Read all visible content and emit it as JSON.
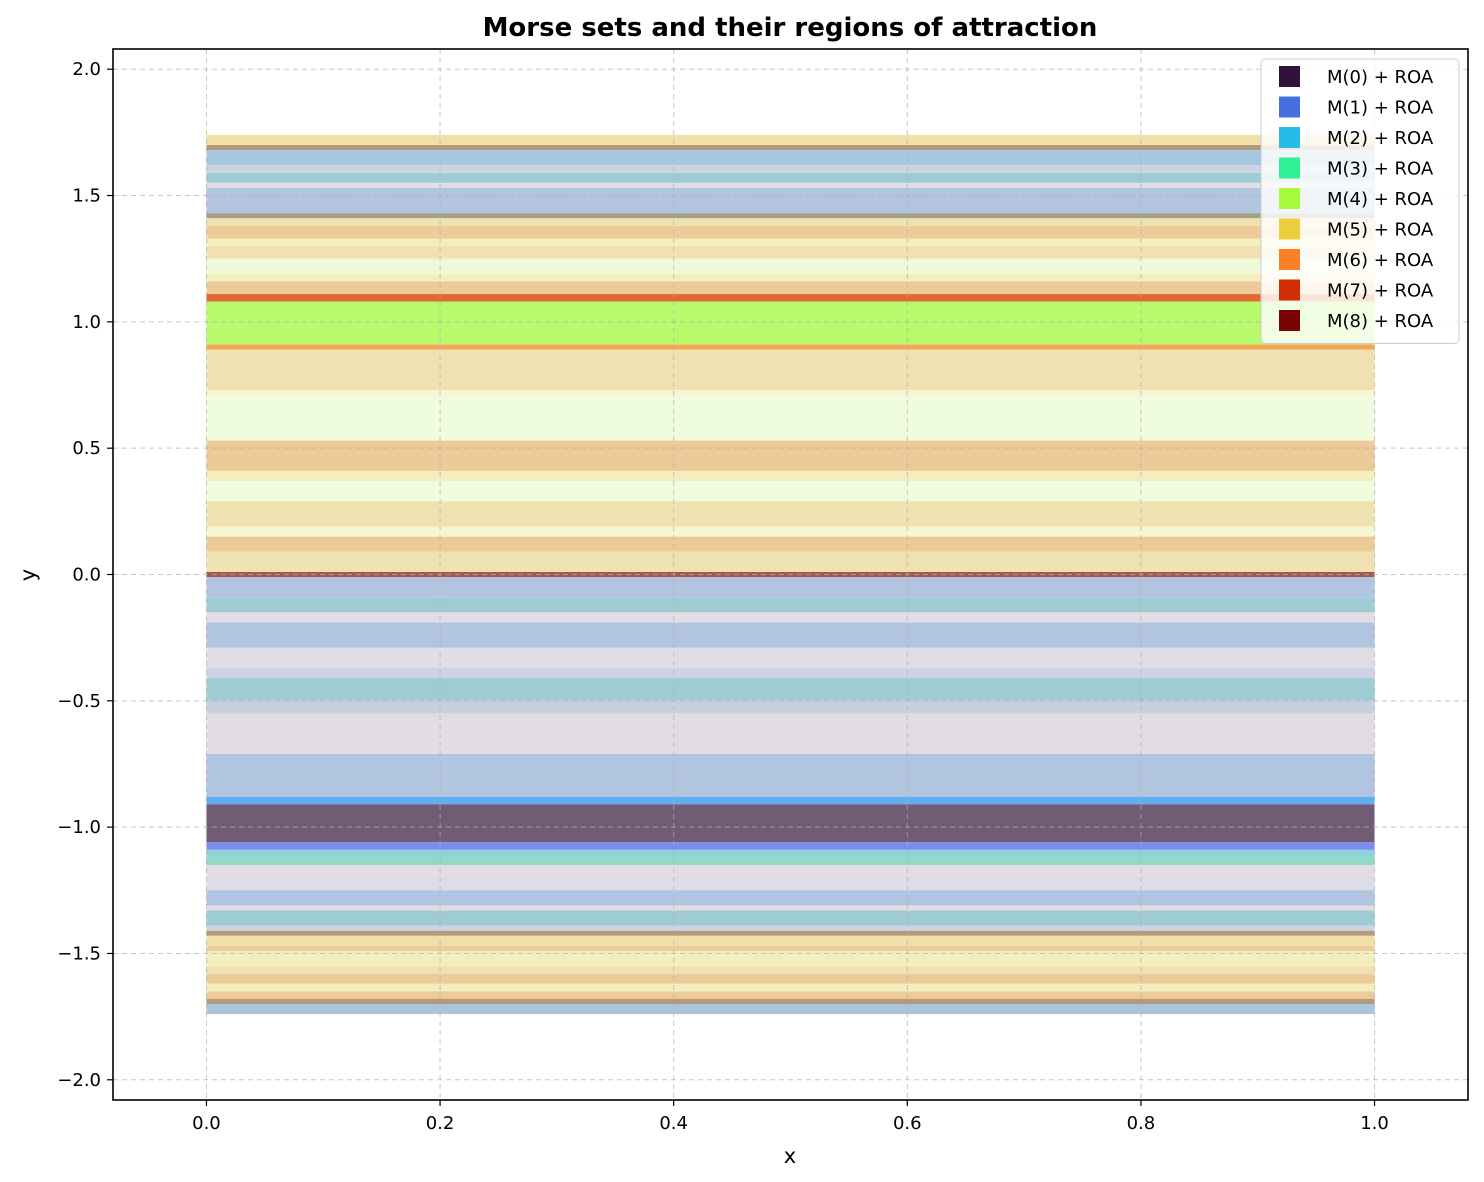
{
  "chart_data": {
    "type": "heatmap",
    "title": "Morse sets and their regions of attraction",
    "xlabel": "x",
    "ylabel": "y",
    "xlim": [
      -0.08,
      1.08
    ],
    "ylim": [
      -2.08,
      2.08
    ],
    "xticks": [
      0.0,
      0.2,
      0.4,
      0.6,
      0.8,
      1.0
    ],
    "xtick_labels": [
      "0.0",
      "0.2",
      "0.4",
      "0.6",
      "0.8",
      "1.0"
    ],
    "yticks": [
      2.0,
      1.5,
      1.0,
      0.5,
      0.0,
      -0.5,
      -1.0,
      -1.5,
      -2.0
    ],
    "ytick_labels": [
      "2.0",
      "1.5",
      "1.0",
      "0.5",
      "0.0",
      "−0.5",
      "−1.0",
      "−1.5",
      "−2.0"
    ],
    "grid": true,
    "legend_position": "top-right",
    "legend": [
      {
        "label": "M(0) + ROA",
        "color": "#30123b"
      },
      {
        "label": "M(1) + ROA",
        "color": "#4670e0"
      },
      {
        "label": "M(2) + ROA",
        "color": "#27bce8"
      },
      {
        "label": "M(3) + ROA",
        "color": "#2ef196"
      },
      {
        "label": "M(4) + ROA",
        "color": "#a6fa3a"
      },
      {
        "label": "M(5) + ROA",
        "color": "#ebce3c"
      },
      {
        "label": "M(6) + ROA",
        "color": "#fa8127"
      },
      {
        "label": "M(7) + ROA",
        "color": "#d22e05"
      },
      {
        "label": "M(8) + ROA",
        "color": "#7a0403"
      }
    ],
    "bands": [
      {
        "y0": 1.7,
        "y1": 1.74,
        "color": "#f0dfa8"
      },
      {
        "y0": 1.68,
        "y1": 1.7,
        "color": "#b2997a"
      },
      {
        "y0": 1.62,
        "y1": 1.68,
        "color": "#a6c8dc"
      },
      {
        "y0": 1.59,
        "y1": 1.62,
        "color": "#cfd2e2"
      },
      {
        "y0": 1.55,
        "y1": 1.59,
        "color": "#9ecbd4"
      },
      {
        "y0": 1.53,
        "y1": 1.55,
        "color": "#e2dde4"
      },
      {
        "y0": 1.43,
        "y1": 1.53,
        "color": "#b1c4e0"
      },
      {
        "y0": 1.41,
        "y1": 1.43,
        "color": "#a3a083"
      },
      {
        "y0": 1.38,
        "y1": 1.41,
        "color": "#f0e2b0"
      },
      {
        "y0": 1.33,
        "y1": 1.38,
        "color": "#eecc98"
      },
      {
        "y0": 1.3,
        "y1": 1.33,
        "color": "#f3eebb"
      },
      {
        "y0": 1.25,
        "y1": 1.3,
        "color": "#f0e2b0"
      },
      {
        "y0": 1.19,
        "y1": 1.25,
        "color": "#eef9d8"
      },
      {
        "y0": 1.16,
        "y1": 1.19,
        "color": "#f3eebb"
      },
      {
        "y0": 1.11,
        "y1": 1.16,
        "color": "#eccb98"
      },
      {
        "y0": 1.08,
        "y1": 1.11,
        "color": "#e06a36"
      },
      {
        "y0": 0.91,
        "y1": 1.08,
        "color": "#b9fa6c"
      },
      {
        "y0": 0.89,
        "y1": 0.91,
        "color": "#f5a655"
      },
      {
        "y0": 0.73,
        "y1": 0.89,
        "color": "#f0e2b0"
      },
      {
        "y0": 0.7,
        "y1": 0.73,
        "color": "#f4f6d4"
      },
      {
        "y0": 0.53,
        "y1": 0.7,
        "color": "#effcdd"
      },
      {
        "y0": 0.41,
        "y1": 0.53,
        "color": "#eccb98"
      },
      {
        "y0": 0.37,
        "y1": 0.41,
        "color": "#f3eebb"
      },
      {
        "y0": 0.29,
        "y1": 0.37,
        "color": "#effcdd"
      },
      {
        "y0": 0.19,
        "y1": 0.29,
        "color": "#f0e2b0"
      },
      {
        "y0": 0.15,
        "y1": 0.19,
        "color": "#f4f6d4"
      },
      {
        "y0": 0.09,
        "y1": 0.15,
        "color": "#eccb98"
      },
      {
        "y0": 0.01,
        "y1": 0.09,
        "color": "#f0e2b0"
      },
      {
        "y0": -0.01,
        "y1": 0.01,
        "color": "#a35a4c"
      },
      {
        "y0": -0.09,
        "y1": -0.01,
        "color": "#b1c4e0"
      },
      {
        "y0": -0.15,
        "y1": -0.09,
        "color": "#9ecbd4"
      },
      {
        "y0": -0.19,
        "y1": -0.15,
        "color": "#e2dde4"
      },
      {
        "y0": -0.29,
        "y1": -0.19,
        "color": "#b1c4e0"
      },
      {
        "y0": -0.37,
        "y1": -0.29,
        "color": "#e2dde4"
      },
      {
        "y0": -0.41,
        "y1": -0.37,
        "color": "#cfd2e2"
      },
      {
        "y0": -0.5,
        "y1": -0.41,
        "color": "#9ecbd4"
      },
      {
        "y0": -0.55,
        "y1": -0.5,
        "color": "#c8d0e0"
      },
      {
        "y0": -0.71,
        "y1": -0.55,
        "color": "#e2dde4"
      },
      {
        "y0": -0.88,
        "y1": -0.71,
        "color": "#b1c4e0"
      },
      {
        "y0": -0.91,
        "y1": -0.88,
        "color": "#62aef0"
      },
      {
        "y0": -1.06,
        "y1": -0.91,
        "color": "#725b74"
      },
      {
        "y0": -1.09,
        "y1": -1.06,
        "color": "#7b8ef0"
      },
      {
        "y0": -1.12,
        "y1": -1.09,
        "color": "#8fd2d8"
      },
      {
        "y0": -1.15,
        "y1": -1.12,
        "color": "#93d9c6"
      },
      {
        "y0": -1.19,
        "y1": -1.15,
        "color": "#e2dde4"
      },
      {
        "y0": -1.25,
        "y1": -1.19,
        "color": "#dcdde8"
      },
      {
        "y0": -1.31,
        "y1": -1.25,
        "color": "#b1c4e0"
      },
      {
        "y0": -1.33,
        "y1": -1.31,
        "color": "#e2dde4"
      },
      {
        "y0": -1.39,
        "y1": -1.33,
        "color": "#9ecbd4"
      },
      {
        "y0": -1.41,
        "y1": -1.39,
        "color": "#cfd2e2"
      },
      {
        "y0": -1.43,
        "y1": -1.41,
        "color": "#b2997a"
      },
      {
        "y0": -1.47,
        "y1": -1.43,
        "color": "#f0dfa8"
      },
      {
        "y0": -1.49,
        "y1": -1.47,
        "color": "#eecc98"
      },
      {
        "y0": -1.55,
        "y1": -1.49,
        "color": "#f3eebb"
      },
      {
        "y0": -1.58,
        "y1": -1.55,
        "color": "#f0e2b0"
      },
      {
        "y0": -1.62,
        "y1": -1.58,
        "color": "#eccb98"
      },
      {
        "y0": -1.65,
        "y1": -1.62,
        "color": "#f3eebb"
      },
      {
        "y0": -1.68,
        "y1": -1.65,
        "color": "#eccb98"
      },
      {
        "y0": -1.7,
        "y1": -1.68,
        "color": "#b2997a"
      },
      {
        "y0": -1.74,
        "y1": -1.7,
        "color": "#a9c6dc"
      }
    ]
  }
}
